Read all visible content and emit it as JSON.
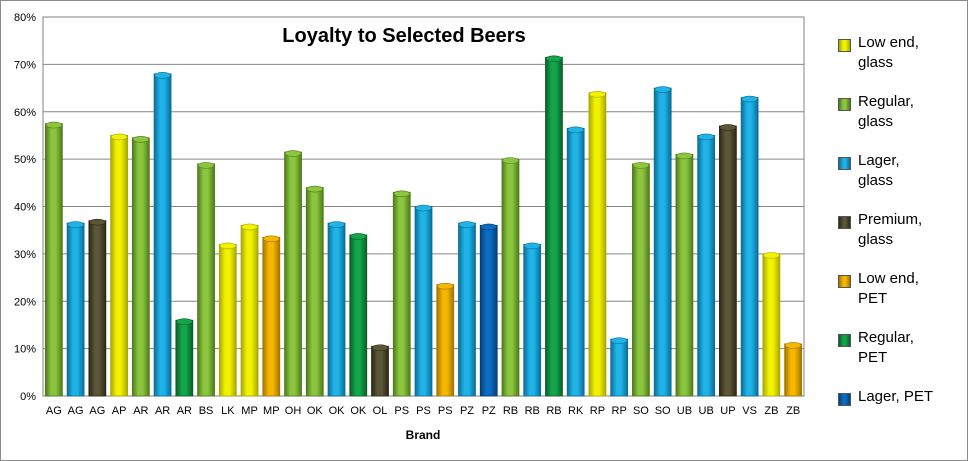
{
  "chart_data": {
    "type": "bar",
    "title": "Loyalty to Selected Beers",
    "xlabel": "Brand",
    "ylabel": "",
    "ylim": [
      0,
      80
    ],
    "yticks": [
      "0%",
      "10%",
      "20%",
      "30%",
      "40%",
      "50%",
      "60%",
      "70%",
      "80%"
    ],
    "grid": "horizontal",
    "legend_position": "right",
    "series_types": [
      {
        "key": "lowend_glass",
        "name": "Low end,\nglass",
        "color": "#f2f200",
        "dark": "#a8a800"
      },
      {
        "key": "regular_glass",
        "name": "Regular,\nglass",
        "color": "#8cc63f",
        "dark": "#4d7a1a"
      },
      {
        "key": "lager_glass",
        "name": "Lager,\nglass",
        "color": "#1fb3e8",
        "dark": "#0b6d96"
      },
      {
        "key": "premium_glass",
        "name": "Premium,\nglass",
        "color": "#5b5636",
        "dark": "#2b2817"
      },
      {
        "key": "lowend_pet",
        "name": "Low end,\nPET",
        "color": "#f5b700",
        "dark": "#a37400"
      },
      {
        "key": "regular_pet",
        "name": "Regular,\nPET",
        "color": "#12a54a",
        "dark": "#0a5e28"
      },
      {
        "key": "lager_pet",
        "name": "Lager, PET",
        "color": "#0c6cc2",
        "dark": "#053e74"
      }
    ],
    "bars": [
      {
        "category": "AG",
        "value": 57.5,
        "type": "regular_glass"
      },
      {
        "category": "AG",
        "value": 36.5,
        "type": "lager_glass"
      },
      {
        "category": "AG",
        "value": 37,
        "type": "premium_glass"
      },
      {
        "category": "AP",
        "value": 55,
        "type": "lowend_glass"
      },
      {
        "category": "AR",
        "value": 54.5,
        "type": "regular_glass"
      },
      {
        "category": "AR",
        "value": 68,
        "type": "lager_glass"
      },
      {
        "category": "AR",
        "value": 16,
        "type": "regular_pet"
      },
      {
        "category": "BS",
        "value": 49,
        "type": "regular_glass"
      },
      {
        "category": "LK",
        "value": 32,
        "type": "lowend_glass"
      },
      {
        "category": "MP",
        "value": 36,
        "type": "lowend_glass"
      },
      {
        "category": "MP",
        "value": 33.5,
        "type": "lowend_pet"
      },
      {
        "category": "OH",
        "value": 51.5,
        "type": "regular_glass"
      },
      {
        "category": "OK",
        "value": 44,
        "type": "regular_glass"
      },
      {
        "category": "OK",
        "value": 36.5,
        "type": "lager_glass"
      },
      {
        "category": "OK",
        "value": 34,
        "type": "regular_pet"
      },
      {
        "category": "OL",
        "value": 10.5,
        "type": "premium_glass"
      },
      {
        "category": "PS",
        "value": 43,
        "type": "regular_glass"
      },
      {
        "category": "PS",
        "value": 40,
        "type": "lager_glass"
      },
      {
        "category": "PS",
        "value": 23.5,
        "type": "lowend_pet"
      },
      {
        "category": "PZ",
        "value": 36.5,
        "type": "lager_glass"
      },
      {
        "category": "PZ",
        "value": 36,
        "type": "lager_pet"
      },
      {
        "category": "RB",
        "value": 50,
        "type": "regular_glass"
      },
      {
        "category": "RB",
        "value": 32,
        "type": "lager_glass"
      },
      {
        "category": "RB",
        "value": 71.5,
        "type": "regular_pet"
      },
      {
        "category": "RK",
        "value": 56.5,
        "type": "lager_glass"
      },
      {
        "category": "RP",
        "value": 64,
        "type": "lowend_glass"
      },
      {
        "category": "RP",
        "value": 12,
        "type": "lager_glass"
      },
      {
        "category": "SO",
        "value": 49,
        "type": "regular_glass"
      },
      {
        "category": "SO",
        "value": 65,
        "type": "lager_glass"
      },
      {
        "category": "UB",
        "value": 51,
        "type": "regular_glass"
      },
      {
        "category": "UB",
        "value": 55,
        "type": "lager_glass"
      },
      {
        "category": "UP",
        "value": 57,
        "type": "premium_glass"
      },
      {
        "category": "VS",
        "value": 63,
        "type": "lager_glass"
      },
      {
        "category": "ZB",
        "value": 30,
        "type": "lowend_glass"
      },
      {
        "category": "ZB",
        "value": 11,
        "type": "lowend_pet"
      }
    ]
  }
}
